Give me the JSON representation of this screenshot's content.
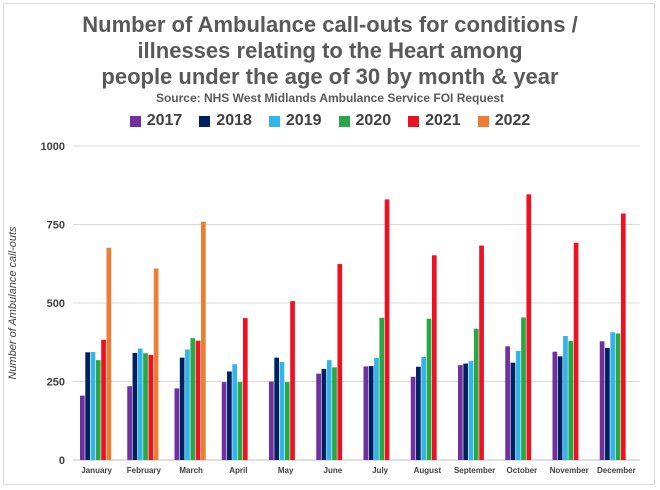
{
  "chart_data": {
    "type": "bar",
    "title": [
      "Number of Ambulance call-outs for conditions /",
      "illnesses relating to the Heart among",
      "people under the age of 30 by month & year"
    ],
    "subtitle": "Source: NHS West Midlands Ambulance Service FOI Request",
    "xlabel": "",
    "ylabel": "Number of Ambulance call-outs",
    "ylim": [
      0,
      1000
    ],
    "yticks": [
      "0",
      "250",
      "500",
      "750",
      "1000"
    ],
    "grid": true,
    "legend_position": "top",
    "categories": [
      "January",
      "February",
      "March",
      "April",
      "May",
      "June",
      "July",
      "August",
      "September",
      "October",
      "November",
      "December"
    ],
    "series": [
      {
        "name": "2017",
        "color": "#7030a0",
        "values": [
          205,
          235,
          228,
          248,
          250,
          275,
          298,
          265,
          302,
          362,
          345,
          378
        ]
      },
      {
        "name": "2018",
        "color": "#002060",
        "values": [
          343,
          341,
          326,
          282,
          326,
          290,
          299,
          297,
          307,
          310,
          330,
          357
        ]
      },
      {
        "name": "2019",
        "color": "#31b4e8",
        "values": [
          344,
          355,
          352,
          305,
          312,
          318,
          325,
          328,
          315,
          347,
          395,
          407
        ]
      },
      {
        "name": "2020",
        "color": "#28a745",
        "values": [
          318,
          340,
          388,
          248,
          248,
          295,
          453,
          450,
          418,
          454,
          379,
          403
        ]
      },
      {
        "name": "2021",
        "color": "#ee1122",
        "values": [
          383,
          335,
          380,
          452,
          506,
          624,
          830,
          652,
          683,
          846,
          692,
          785
        ]
      },
      {
        "name": "2022",
        "color": "#ed7d31",
        "values": [
          676,
          610,
          759,
          null,
          null,
          null,
          null,
          null,
          null,
          null,
          null,
          null
        ]
      }
    ]
  }
}
